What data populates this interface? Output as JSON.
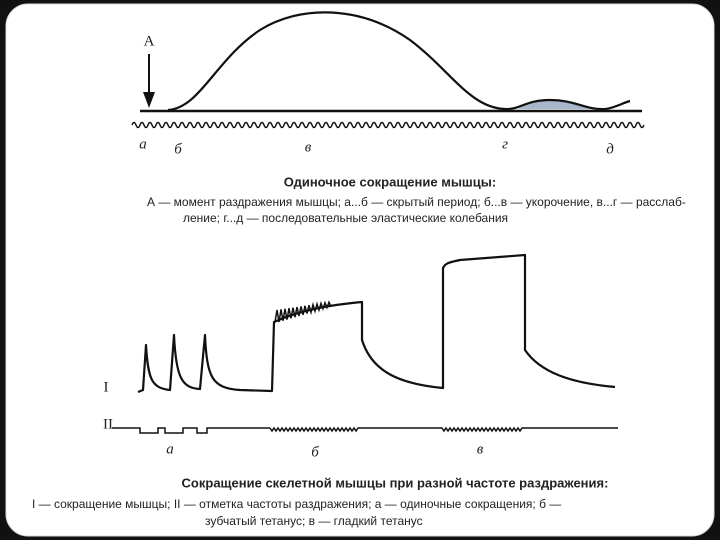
{
  "figure1": {
    "marker": "А",
    "labels": [
      "а",
      "б",
      "в",
      "г",
      "д"
    ],
    "title": "Одиночное сокращение мышцы:",
    "caption": [
      "А — момент раздражения мышцы; а...б — скрытый период; б...в — укорочение, в...г — расслаб-",
      "ление; г...д — последовательные эластические колебания"
    ]
  },
  "figure2": {
    "traces": [
      "I",
      "II"
    ],
    "labels": [
      "а",
      "б",
      "в"
    ],
    "title": "Сокращение скелетной мышцы при разной частоте раздражения:",
    "caption": [
      "I — сокращение мышцы; II — отметка частоты раздражения; а — одиночные сокращения; б —",
      "зубчатый тетанус; в — гладкий тетанус"
    ]
  }
}
